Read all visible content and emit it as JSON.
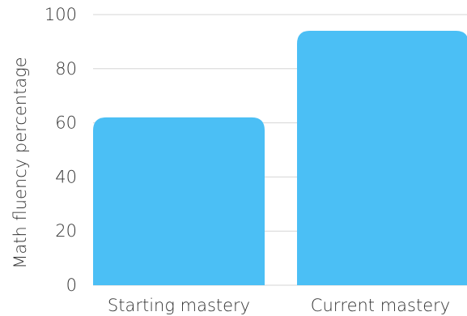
{
  "chart_data": {
    "type": "bar",
    "categories": [
      "Starting mastery",
      "Current mastery"
    ],
    "values": [
      62,
      94
    ],
    "title": "",
    "xlabel": "",
    "ylabel": "Math fluency percentage",
    "ylim": [
      0,
      100
    ],
    "yticks": [
      0,
      20,
      40,
      60,
      80,
      100
    ],
    "grid": true,
    "colors": {
      "bar": "#4bbff5",
      "grid": "#d6d6d6",
      "text": "#333333"
    }
  }
}
